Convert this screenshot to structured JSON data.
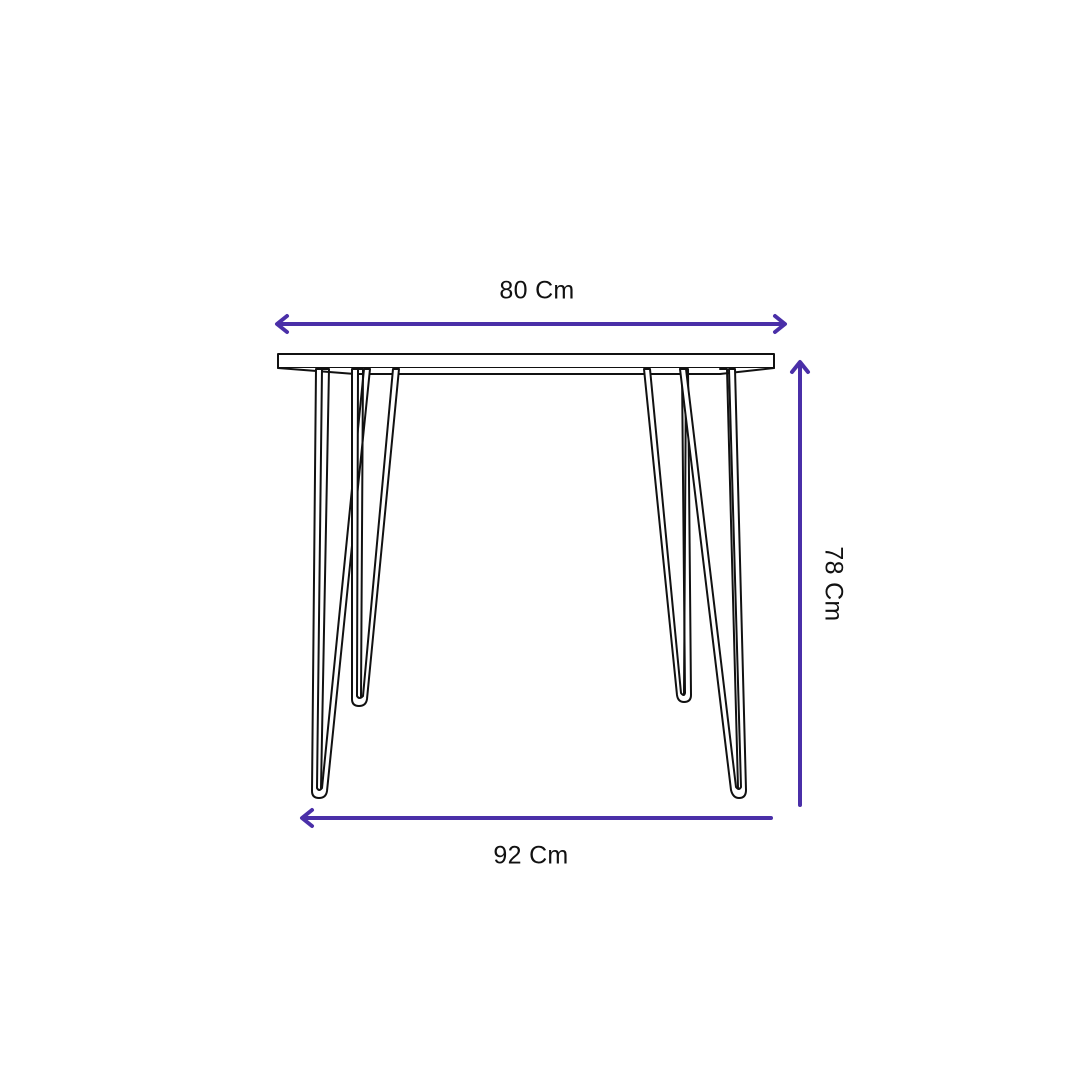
{
  "dimensions": {
    "top_width": "80 Cm",
    "height": "78 Cm",
    "bottom_width": "92 Cm"
  },
  "colors": {
    "arrow": "#4a2fa8",
    "outline": "#111111",
    "background": "#ffffff"
  },
  "icons": {
    "table": "hairpin-leg-table-line-drawing",
    "arrows": [
      "double-headed-arrow",
      "up-arrow",
      "left-arrow"
    ]
  }
}
